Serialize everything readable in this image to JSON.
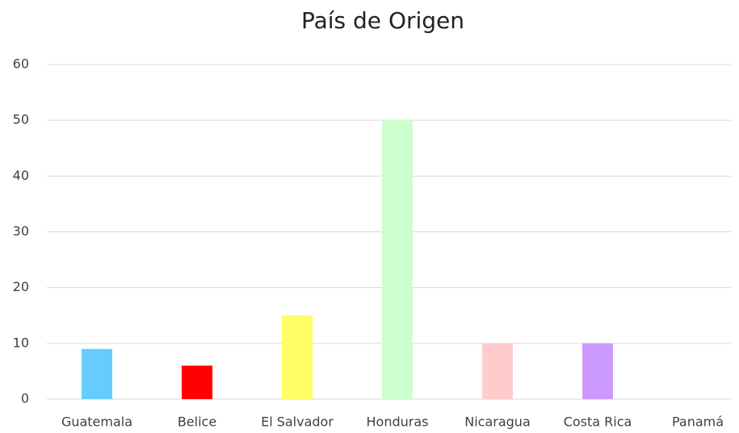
{
  "chart_data": {
    "type": "bar",
    "title": "País de Origen",
    "categories": [
      "Guatemala",
      "Belice",
      "El Salvador",
      "Honduras",
      "Nicaragua",
      "Costa Rica",
      "Panamá"
    ],
    "values": [
      9,
      6,
      15,
      50,
      10,
      10,
      0
    ],
    "colors": [
      "#66ccff",
      "#ff0000",
      "#ffff66",
      "#ccffcc",
      "#ffcccc",
      "#cc99ff",
      "#999999"
    ],
    "ylim": [
      0,
      60
    ],
    "yticks": [
      0,
      10,
      20,
      30,
      40,
      50,
      60
    ],
    "grid": true
  }
}
